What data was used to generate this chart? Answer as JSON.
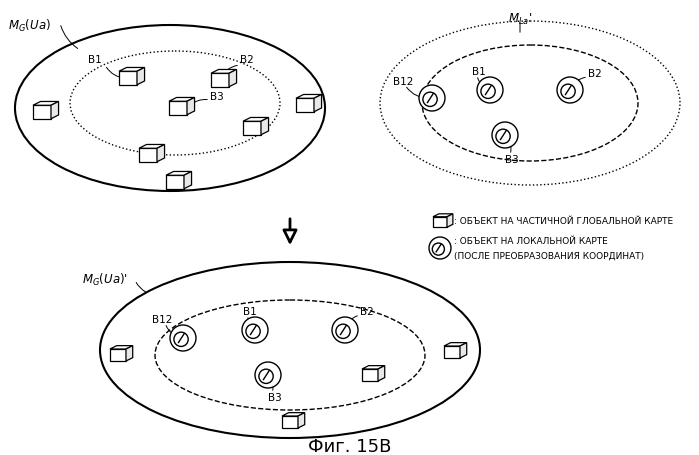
{
  "title": "Фиг. 15В",
  "title_fontsize": 13,
  "background_color": "#ffffff",
  "text_color": "#000000",
  "legend_box_text": ": ОБЪЕКТ НА ЧАСТИЧНОЙ ГЛОБАЛЬНОЙ КАРТЕ",
  "legend_ellipse_text1": ": ОБЪЕКТ НА ЛОКАЛЬНОЙ КАРТЕ",
  "legend_ellipse_text2": "(ПОСЛЕ ПРЕОБРАЗОВАНИЯ КООРДИНАТ)"
}
